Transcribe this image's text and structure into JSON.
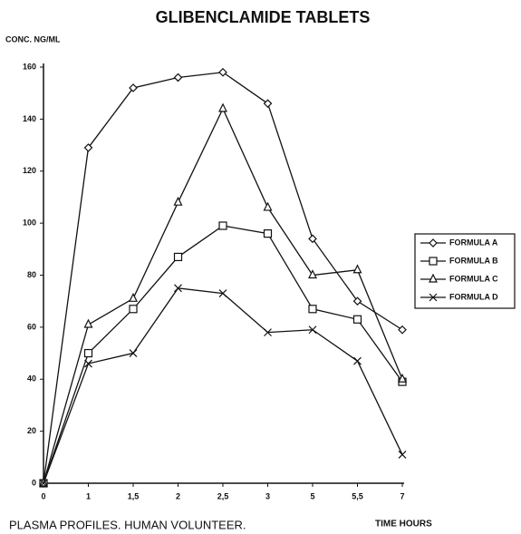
{
  "chart_data": {
    "type": "line",
    "title": "GLIBENCLAMIDE TABLETS",
    "y_label": "CONC. NG/ML",
    "x_label": "TIME HOURS",
    "caption": "PLASMA PROFILES.  HUMAN VOLUNTEER.",
    "categories": [
      "0",
      "1",
      "1,5",
      "2",
      "2,5",
      "3",
      "5",
      "5,5",
      "7"
    ],
    "ylim": [
      0,
      160
    ],
    "yticks": [
      0,
      20,
      40,
      60,
      80,
      100,
      120,
      140,
      160
    ],
    "legend": "right",
    "series": [
      {
        "name": "FORMULA A",
        "color": "#111111",
        "marker": "diamond",
        "values": [
          0,
          129,
          152,
          156,
          158,
          146,
          94,
          70,
          59
        ]
      },
      {
        "name": "FORMULA B",
        "color": "#111111",
        "marker": "square",
        "values": [
          0,
          50,
          67,
          87,
          99,
          96,
          67,
          63,
          39
        ]
      },
      {
        "name": "FORMULA C",
        "color": "#111111",
        "marker": "triangle",
        "values": [
          0,
          61,
          71,
          108,
          144,
          106,
          80,
          82,
          40
        ]
      },
      {
        "name": "FORMULA D",
        "color": "#111111",
        "marker": "x",
        "values": [
          0,
          46,
          50,
          75,
          73,
          58,
          59,
          47,
          11
        ]
      }
    ]
  }
}
